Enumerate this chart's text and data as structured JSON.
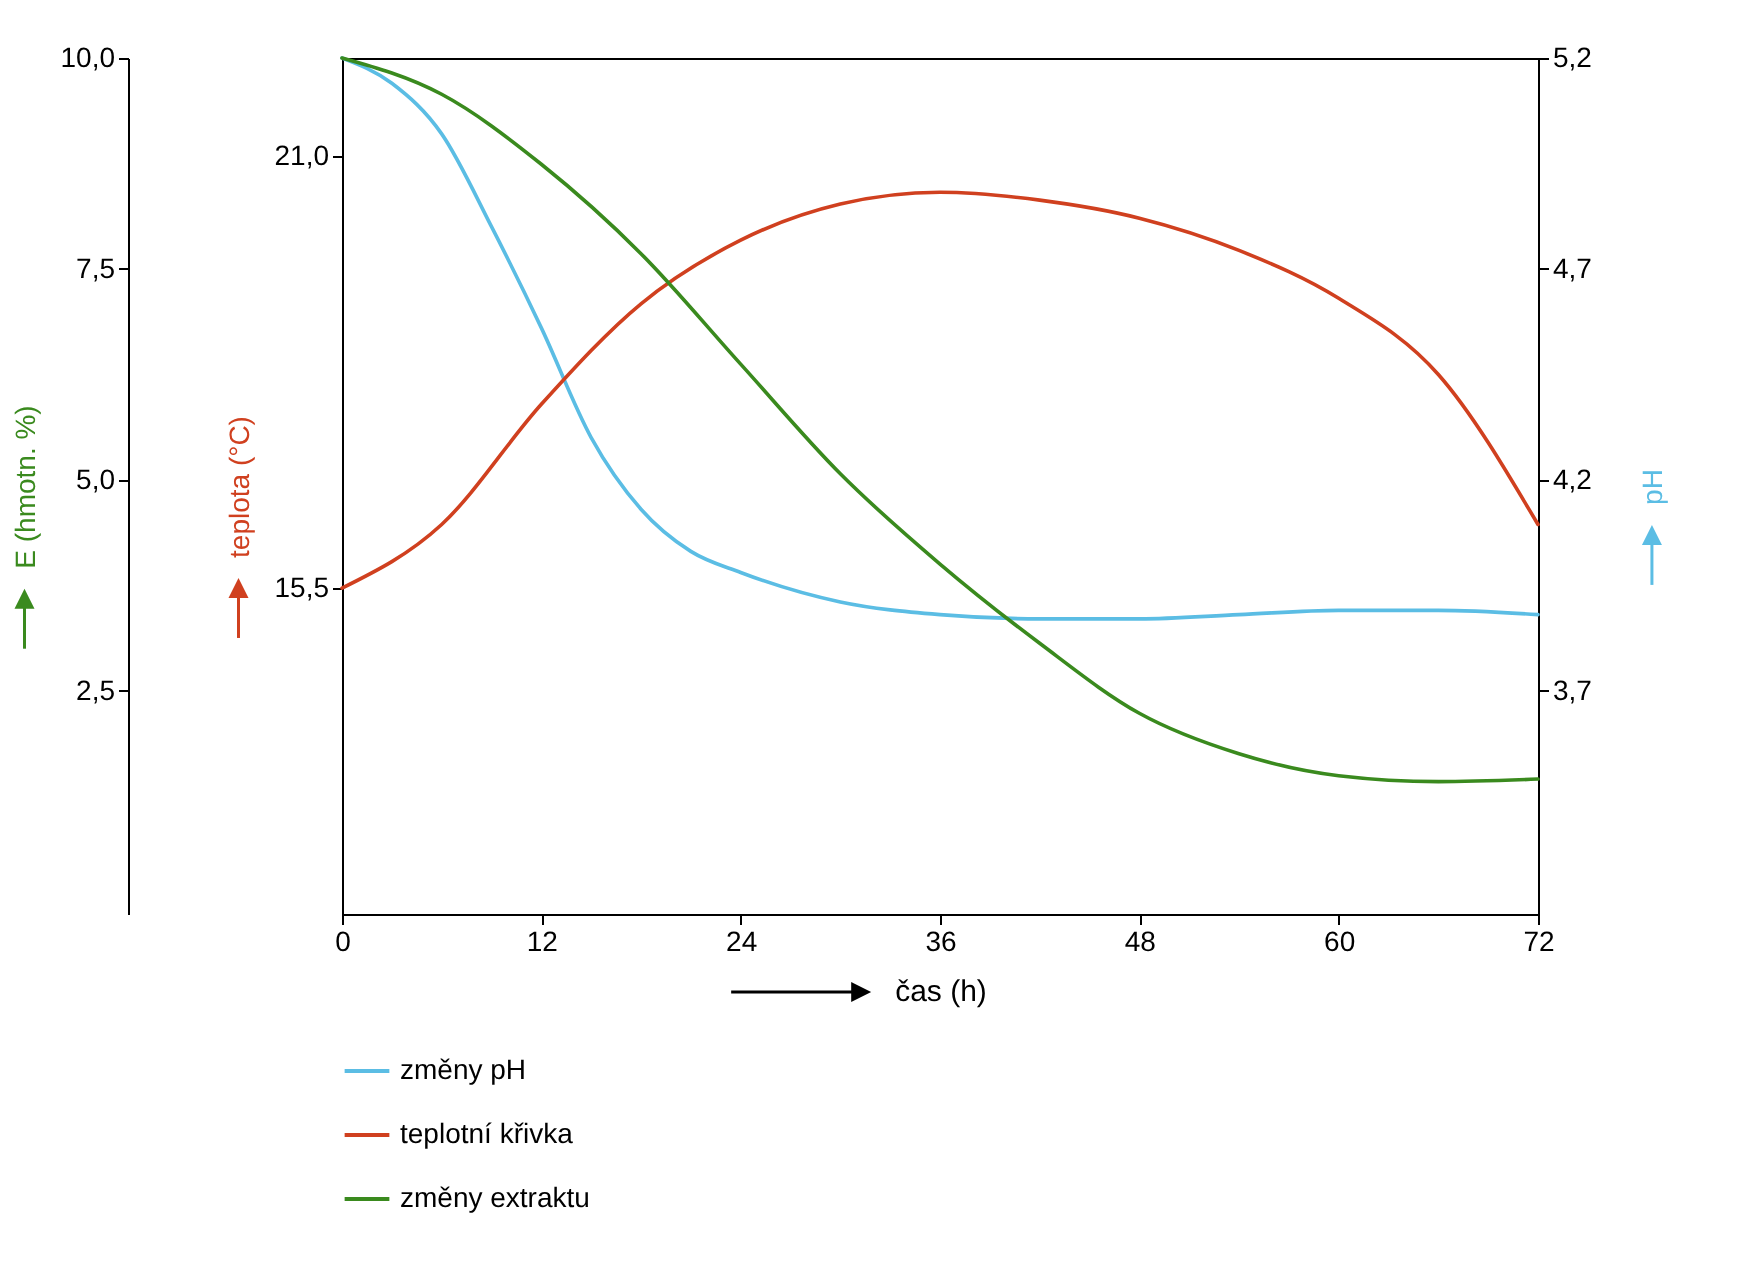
{
  "chart_data": {
    "type": "line",
    "xlabel": "čas (h)",
    "ylabel": "E (hmotn. %)",
    "y2label": "pH",
    "y3label": "teplota (°C)",
    "xlim": [
      0,
      72
    ],
    "xticks": [
      0,
      12,
      24,
      36,
      48,
      60,
      72
    ],
    "ylim": [
      -0.15,
      10
    ],
    "yticks": [
      {
        "value": 2.5,
        "label": "2,5"
      },
      {
        "value": 5,
        "label": "5,0"
      },
      {
        "value": 7.5,
        "label": "7,5"
      },
      {
        "value": 10,
        "label": "10,0"
      }
    ],
    "y2lim": [
      3.17,
      5.2
    ],
    "y2ticks": [
      {
        "value": 3.7,
        "label": "3,7"
      },
      {
        "value": 4.2,
        "label": "4,2"
      },
      {
        "value": 4.7,
        "label": "4,7"
      },
      {
        "value": 5.2,
        "label": "5,2"
      }
    ],
    "y3lim": [
      11.35,
      22.25
    ],
    "y3ticks": [
      {
        "value": 15.5,
        "label": "15,5"
      },
      {
        "value": 21,
        "label": "21,0"
      }
    ],
    "legend": "bottom",
    "grid": false,
    "line_style": "solid",
    "series": [
      {
        "name": "změny pH",
        "color": "#5bbde4",
        "axis": "y2",
        "x": [
          0,
          3,
          6,
          9,
          12,
          15,
          18,
          21,
          24,
          30,
          36,
          42,
          48,
          54,
          60,
          66,
          72
        ],
        "values": [
          5.2,
          5.14,
          5.02,
          4.8,
          4.56,
          4.3,
          4.13,
          4.03,
          3.98,
          3.91,
          3.88,
          3.87,
          3.87,
          3.88,
          3.89,
          3.89,
          3.88
        ]
      },
      {
        "name": "teplotní křivka",
        "color": "#d0401f",
        "axis": "y3",
        "x": [
          0,
          6,
          12,
          18,
          24,
          30,
          36,
          42,
          48,
          54,
          60,
          66,
          72
        ],
        "values": [
          15.5,
          16.31,
          17.84,
          19.12,
          19.93,
          20.39,
          20.54,
          20.44,
          20.21,
          19.8,
          19.19,
          18.22,
          16.31
        ]
      },
      {
        "name": "změny extraktu",
        "color": "#3a8a1e",
        "x": [
          0,
          6,
          12,
          18,
          24,
          30,
          36,
          42,
          48,
          54,
          60,
          66,
          72
        ],
        "values": [
          10,
          9.57,
          8.74,
          7.68,
          6.37,
          5.07,
          4.0,
          3.06,
          2.23,
          1.75,
          1.49,
          1.42,
          1.45
        ]
      }
    ]
  }
}
